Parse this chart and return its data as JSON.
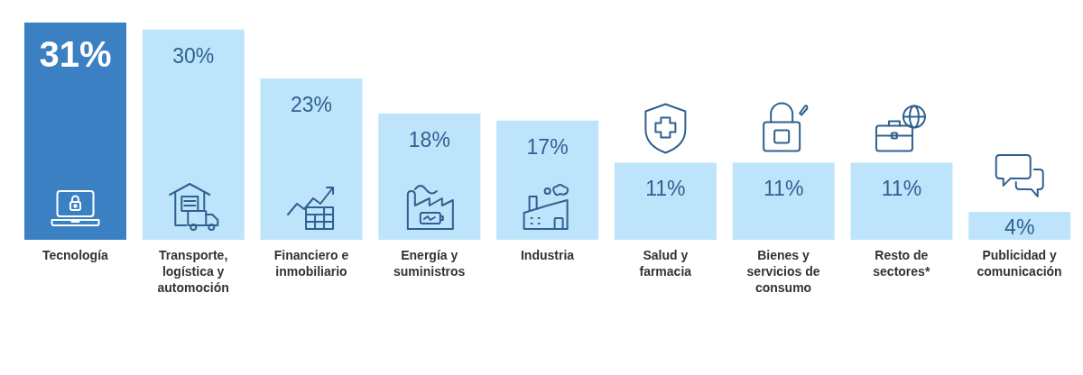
{
  "chart_data": {
    "type": "bar",
    "categories": [
      "Tecnología",
      "Transporte, logística y automoción",
      "Financiero e inmobiliario",
      "Energía y suministros",
      "Industria",
      "Salud y farmacia",
      "Bienes y servicios de consumo",
      "Resto de sectores*",
      "Publicidad y comunicación"
    ],
    "values": [
      31,
      30,
      23,
      18,
      17,
      11,
      11,
      11,
      4
    ],
    "colors": [
      "#3a80c2",
      "#bee4fb",
      "#bee4fb",
      "#bee4fb",
      "#bee4fb",
      "#bee4fb",
      "#bee4fb",
      "#bee4fb",
      "#bee4fb"
    ],
    "value_labels": [
      "31%",
      "30%",
      "23%",
      "18%",
      "17%",
      "11%",
      "11%",
      "11%",
      "4%"
    ]
  }
}
